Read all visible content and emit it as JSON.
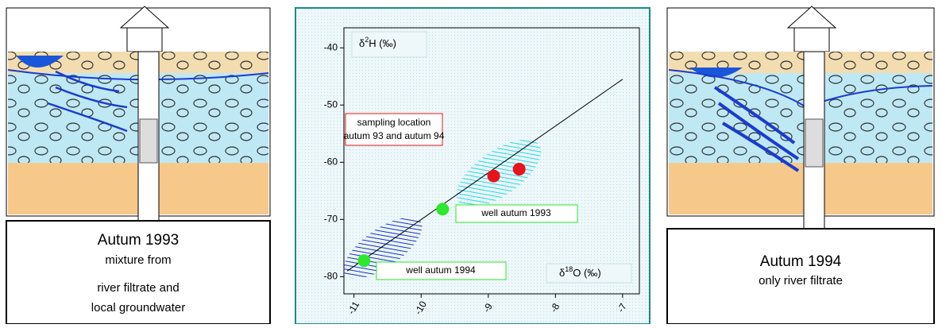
{
  "chart_data": {
    "type": "scatter",
    "x_label": [
      "δ",
      "18",
      "O (‰)"
    ],
    "y_label": [
      "δ",
      "2",
      "H (‰)"
    ],
    "xlim": [
      -11.15,
      -6.75
    ],
    "ylim": [
      -83,
      -36.5
    ],
    "xticks": [
      -11,
      -10,
      -9,
      -8,
      -7
    ],
    "yticks": [
      -40,
      -50,
      -60,
      -70,
      -80
    ],
    "series": [
      {
        "color": "#e8141b",
        "x": [
          -8.92,
          -8.54
        ],
        "values": [
          -62.4,
          -61.2
        ]
      },
      {
        "color": "#2ee82e",
        "x": [
          -9.68,
          -10.85
        ],
        "values": [
          -68.2,
          -77.2
        ]
      }
    ],
    "line": {
      "color": "#000000",
      "x": [
        -11.1,
        -7
      ],
      "values": [
        -79,
        -45.5
      ]
    },
    "annotations": [
      "sampling location",
      "autum 93 and autum 94",
      "well autum 1993",
      "well autum 1994"
    ]
  },
  "left_panel": {
    "caption": [
      "Autum 1993",
      "mixture from",
      "river filtrate and",
      "local groundwater"
    ]
  },
  "right_panel": {
    "caption": [
      "Autum 1994",
      "only river filtrate"
    ]
  }
}
